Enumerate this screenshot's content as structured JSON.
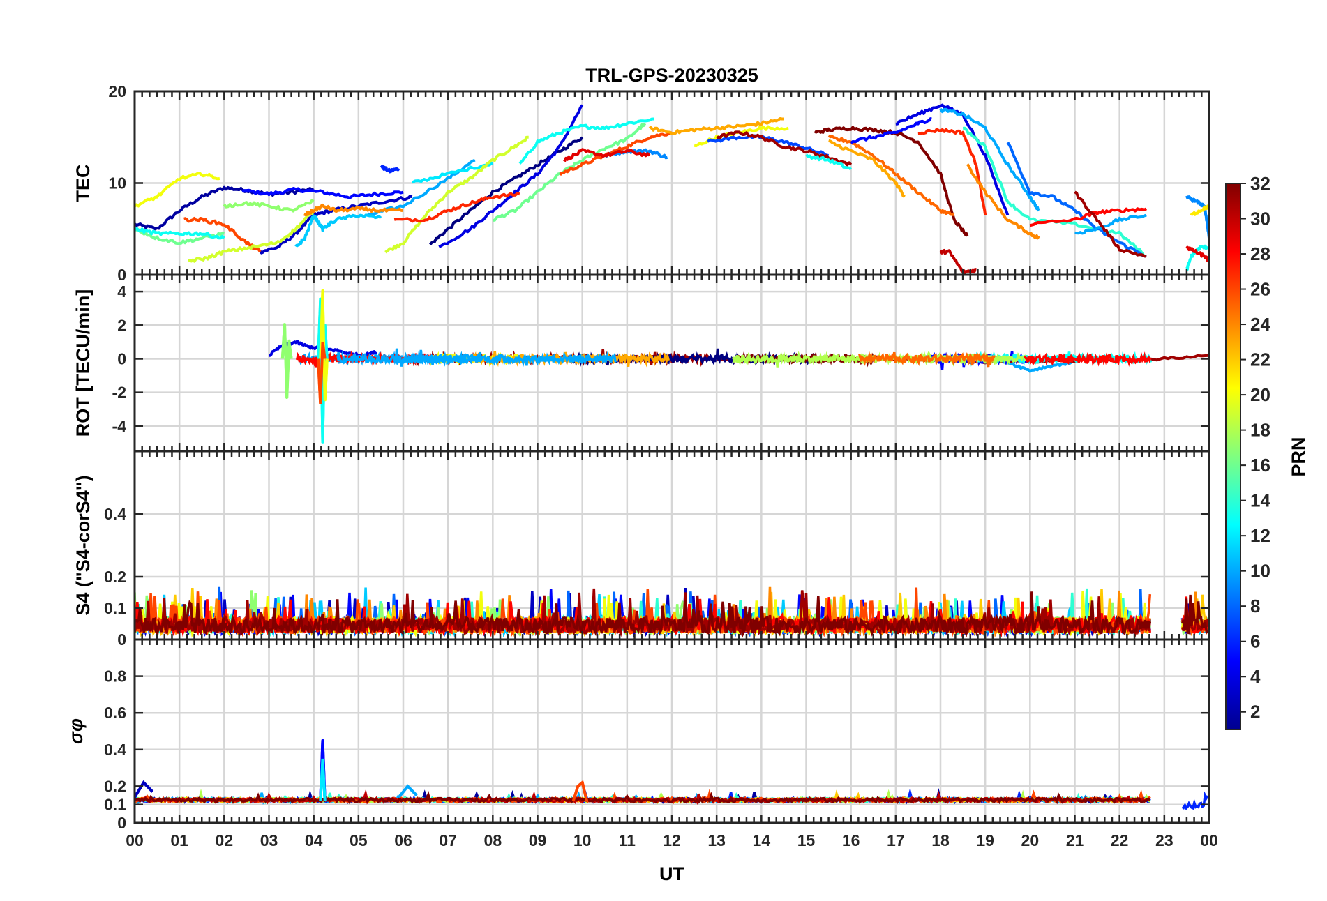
{
  "figure": {
    "title": "TRL-GPS-20230325",
    "xlabel": "UT",
    "x_ticks": [
      "00",
      "01",
      "02",
      "03",
      "04",
      "05",
      "06",
      "07",
      "08",
      "09",
      "10",
      "11",
      "12",
      "13",
      "14",
      "15",
      "16",
      "17",
      "18",
      "19",
      "20",
      "21",
      "22",
      "23",
      "00"
    ]
  },
  "colorbar": {
    "label": "PRN",
    "ticks": [
      "2",
      "4",
      "6",
      "8",
      "10",
      "12",
      "14",
      "16",
      "18",
      "20",
      "22",
      "24",
      "26",
      "28",
      "30",
      "32"
    ],
    "range": [
      1,
      32
    ],
    "colormap": "jet"
  },
  "chart_data": [
    {
      "type": "line",
      "panel": "TEC",
      "ylabel": "TEC",
      "xlim": [
        0,
        24
      ],
      "ylim": [
        0,
        20
      ],
      "y_ticks": [
        "0",
        "10",
        "20"
      ],
      "x_unit": "hours UT",
      "grid": true,
      "series": [
        {
          "prn": 2,
          "x": [
            0.0,
            0.5,
            1.0,
            1.5,
            2.0,
            2.5,
            3.0,
            3.5,
            4.0
          ],
          "y": [
            5.5,
            5.0,
            7.0,
            8.5,
            9.5,
            9.2,
            8.8,
            9.0,
            9.3
          ]
        },
        {
          "prn": 5,
          "x": [
            2.4,
            3.0,
            3.6,
            4.2,
            4.8,
            5.4,
            6.0
          ],
          "y": [
            9.2,
            8.8,
            9.3,
            9.0,
            8.5,
            8.8,
            9.0
          ]
        },
        {
          "prn": 6,
          "x": [
            5.5,
            5.7,
            5.9
          ],
          "y": [
            11.8,
            11.3,
            11.6
          ]
        },
        {
          "prn": 3,
          "x": [
            2.8,
            3.2,
            3.6,
            4.0,
            4.4,
            5.0,
            5.6,
            6.2
          ],
          "y": [
            2.5,
            3.0,
            4.5,
            6.5,
            7.0,
            7.5,
            8.0,
            8.5
          ]
        },
        {
          "prn": 1,
          "x": [
            6.6,
            7.0,
            7.5,
            8.0,
            8.5,
            9.0,
            9.5,
            10.0
          ],
          "y": [
            3.3,
            5.0,
            7.0,
            9.0,
            10.5,
            12.0,
            13.5,
            15.0
          ]
        },
        {
          "prn": 4,
          "x": [
            6.8,
            7.5,
            8.0,
            8.5,
            9.0,
            9.5,
            10.0
          ],
          "y": [
            3.0,
            5.0,
            7.0,
            9.0,
            11.0,
            14.0,
            18.5
          ]
        },
        {
          "prn": 10,
          "x": [
            5.2,
            6.0,
            7.0,
            7.6
          ],
          "y": [
            6.5,
            7.5,
            10.5,
            12.5
          ]
        },
        {
          "prn": 12,
          "x": [
            6.2,
            7.0,
            8.0
          ],
          "y": [
            10.0,
            11.0,
            12.2
          ]
        },
        {
          "prn": 19,
          "x": [
            5.6,
            6.0,
            6.5,
            7.0,
            7.5,
            8.0,
            8.5,
            8.8
          ],
          "y": [
            2.5,
            3.5,
            6.5,
            9.0,
            10.5,
            12.5,
            14.0,
            15.0
          ]
        },
        {
          "prn": 16,
          "x": [
            8.0,
            8.5,
            9.0,
            9.5,
            10.0,
            10.5,
            11.0,
            11.4
          ],
          "y": [
            6.0,
            7.0,
            9.0,
            11.0,
            12.5,
            13.8,
            14.8,
            16.5
          ]
        },
        {
          "prn": 13,
          "x": [
            8.6,
            9.0,
            9.5,
            10.0,
            10.5,
            11.0,
            11.6
          ],
          "y": [
            12.0,
            14.5,
            15.5,
            16.2,
            16.0,
            16.5,
            17.0
          ]
        },
        {
          "prn": 9,
          "x": [
            10.5,
            11.0,
            11.5,
            11.9
          ],
          "y": [
            13.0,
            13.5,
            13.5,
            12.8
          ]
        },
        {
          "prn": 27,
          "x": [
            5.8,
            6.5,
            7.0,
            7.5,
            8.0,
            8.6
          ],
          "y": [
            6.0,
            6.0,
            7.0,
            7.8,
            8.5,
            8.8
          ]
        },
        {
          "prn": 26,
          "x": [
            9.5,
            10.0,
            10.5,
            11.0,
            11.5,
            12.0
          ],
          "y": [
            11.0,
            12.0,
            13.0,
            14.0,
            15.0,
            15.5
          ]
        },
        {
          "prn": 29,
          "x": [
            9.6,
            10.0,
            10.5,
            11.0,
            11.5
          ],
          "y": [
            12.5,
            13.5,
            13.0,
            13.5,
            13.0
          ]
        },
        {
          "prn": 23,
          "x": [
            11.5,
            12.0,
            12.5,
            13.0,
            13.5,
            14.0,
            14.5
          ],
          "y": [
            16.0,
            15.5,
            15.8,
            16.0,
            16.2,
            16.5,
            17.0
          ]
        },
        {
          "prn": 20,
          "x": [
            12.5,
            13.0,
            13.5,
            14.0,
            14.6
          ],
          "y": [
            14.0,
            15.0,
            15.5,
            16.0,
            16.0
          ]
        },
        {
          "prn": 7,
          "x": [
            12.8,
            13.5,
            14.0,
            14.5,
            15.0,
            15.5
          ],
          "y": [
            14.5,
            15.0,
            15.0,
            14.5,
            13.8,
            13.0
          ]
        },
        {
          "prn": 31,
          "x": [
            13.0,
            13.5,
            14.0,
            14.5,
            15.0,
            15.5,
            16.0
          ],
          "y": [
            15.0,
            15.5,
            15.0,
            14.0,
            13.5,
            12.8,
            12.0
          ]
        },
        {
          "prn": 13,
          "x": [
            15.0,
            15.5,
            16.0
          ],
          "y": [
            13.0,
            12.5,
            11.5
          ]
        },
        {
          "prn": 32,
          "x": [
            15.2,
            15.5,
            16.0,
            16.5,
            17.0,
            17.5,
            18.0,
            18.3,
            18.6
          ],
          "y": [
            15.5,
            15.8,
            16.0,
            15.8,
            15.5,
            14.5,
            11.0,
            6.0,
            4.2
          ]
        },
        {
          "prn": 25,
          "x": [
            15.5,
            16.0,
            16.5,
            17.0,
            17.5,
            18.0,
            18.3
          ],
          "y": [
            15.0,
            14.5,
            13.0,
            11.0,
            9.0,
            7.0,
            6.5
          ]
        },
        {
          "prn": 23,
          "x": [
            15.5,
            16.0,
            16.5,
            17.0,
            17.2
          ],
          "y": [
            14.5,
            13.5,
            12.5,
            10.0,
            8.5
          ]
        },
        {
          "prn": 5,
          "x": [
            16.0,
            16.5,
            17.0,
            17.5,
            17.8
          ],
          "y": [
            14.5,
            15.0,
            15.5,
            16.5,
            17.0
          ]
        },
        {
          "prn": 4,
          "x": [
            17.0,
            17.5,
            18.0,
            18.5,
            19.0,
            19.5
          ],
          "y": [
            16.5,
            17.5,
            18.5,
            17.5,
            13.0,
            6.5
          ]
        },
        {
          "prn": 27,
          "x": [
            17.5,
            18.0,
            18.5,
            18.8,
            19.0
          ],
          "y": [
            15.5,
            15.8,
            15.5,
            12.0,
            6.5
          ]
        },
        {
          "prn": 10,
          "x": [
            18.0,
            18.5,
            19.0,
            19.5,
            20.0,
            20.2
          ],
          "y": [
            18.0,
            17.5,
            16.0,
            12.0,
            8.5,
            7.0
          ]
        },
        {
          "prn": 14,
          "x": [
            18.5,
            19.0,
            19.5,
            20.0,
            21.0,
            22.0,
            22.6
          ],
          "y": [
            16.0,
            14.0,
            8.0,
            6.0,
            5.5,
            4.5,
            2.0
          ]
        },
        {
          "prn": 24,
          "x": [
            18.6,
            19.0,
            19.5,
            20.0,
            20.2
          ],
          "y": [
            12.0,
            9.0,
            6.0,
            4.5,
            4.0
          ]
        },
        {
          "prn": 8,
          "x": [
            19.5,
            20.0,
            20.5,
            21.0,
            21.5,
            22.0,
            22.6
          ],
          "y": [
            14.5,
            9.0,
            8.5,
            7.0,
            5.0,
            3.5,
            2.0
          ]
        },
        {
          "prn": 28,
          "x": [
            20.0,
            21.0,
            21.5,
            22.0,
            22.6
          ],
          "y": [
            5.5,
            6.0,
            6.8,
            7.0,
            7.2
          ]
        },
        {
          "prn": 10,
          "x": [
            21.0,
            21.5,
            22.0,
            22.6
          ],
          "y": [
            4.5,
            5.0,
            6.0,
            6.5
          ]
        },
        {
          "prn": 31,
          "x": [
            21.0,
            21.5,
            22.0,
            22.6
          ],
          "y": [
            9.0,
            6.0,
            2.8,
            2.0
          ]
        },
        {
          "prn": 30,
          "x": [
            18.0,
            18.2,
            18.5,
            18.8
          ],
          "y": [
            2.5,
            2.5,
            0.3,
            0.5
          ]
        },
        {
          "prn": 16,
          "x": [
            0.0,
            0.5,
            1.0,
            1.5,
            2.0
          ],
          "y": [
            5.0,
            4.0,
            3.5,
            4.0,
            4.5
          ]
        },
        {
          "prn": 13,
          "x": [
            0.0,
            0.5,
            1.0,
            1.5,
            2.0
          ],
          "y": [
            5.0,
            4.5,
            4.5,
            4.5,
            4.0
          ]
        },
        {
          "prn": 20,
          "x": [
            0.0,
            0.5,
            1.0,
            1.5,
            1.9
          ],
          "y": [
            7.5,
            8.5,
            10.5,
            11.0,
            10.5
          ]
        },
        {
          "prn": 26,
          "x": [
            1.1,
            1.5,
            2.0,
            2.5,
            2.8
          ],
          "y": [
            6.0,
            6.0,
            5.5,
            3.5,
            2.5
          ]
        },
        {
          "prn": 19,
          "x": [
            1.2,
            1.6,
            2.0,
            2.6,
            3.2,
            3.6,
            4.0
          ],
          "y": [
            1.5,
            1.8,
            2.5,
            3.0,
            3.5,
            5.0,
            7.0
          ]
        },
        {
          "prn": 17,
          "x": [
            2.0,
            2.5,
            3.0,
            3.5,
            4.0
          ],
          "y": [
            7.5,
            7.8,
            7.5,
            7.0,
            8.0
          ]
        },
        {
          "prn": 11,
          "x": [
            3.6,
            3.8,
            4.0,
            4.2,
            4.5,
            5.0,
            5.5
          ],
          "y": [
            3.0,
            4.0,
            6.5,
            5.0,
            6.0,
            6.5,
            6.2
          ]
        },
        {
          "prn": 24,
          "x": [
            3.8,
            4.0,
            4.2,
            4.5,
            5.0,
            5.5,
            6.0
          ],
          "y": [
            6.5,
            7.0,
            7.5,
            7.0,
            7.2,
            7.0,
            7.0
          ]
        },
        {
          "prn": 9,
          "x": [
            23.5,
            23.7,
            23.9,
            24.0
          ],
          "y": [
            8.5,
            8.0,
            7.5,
            4.0
          ]
        },
        {
          "prn": 21,
          "x": [
            23.6,
            23.8,
            24.0
          ],
          "y": [
            6.5,
            7.0,
            7.5
          ]
        },
        {
          "prn": 13,
          "x": [
            23.5,
            23.6,
            23.8,
            24.0
          ],
          "y": [
            0.5,
            2.0,
            3.0,
            3.0
          ]
        },
        {
          "prn": 29,
          "x": [
            23.5,
            23.7,
            23.9,
            24.0
          ],
          "y": [
            3.0,
            2.5,
            2.0,
            1.5
          ]
        }
      ]
    },
    {
      "type": "line",
      "panel": "ROT",
      "ylabel": "ROT [TECU/min]",
      "xlim": [
        0,
        24
      ],
      "ylim": [
        -5.5,
        5
      ],
      "y_ticks": [
        "-4",
        "-2",
        "0",
        "2",
        "4"
      ],
      "grid": true,
      "series": [
        {
          "prn": 17,
          "x": [
            3.3,
            3.35,
            3.4,
            3.45,
            3.5
          ],
          "y": [
            0.0,
            2.1,
            -2.3,
            1.0,
            0.0
          ]
        },
        {
          "prn": 13,
          "x": [
            4.1,
            4.15,
            4.2,
            4.25,
            4.3
          ],
          "y": [
            0.0,
            3.5,
            -5.0,
            2.0,
            0.0
          ]
        },
        {
          "prn": 20,
          "x": [
            4.15,
            4.2,
            4.25,
            4.3
          ],
          "y": [
            0.0,
            4.0,
            -2.5,
            0.0
          ]
        },
        {
          "prn": 26,
          "x": [
            4.1,
            4.15,
            4.2,
            4.25
          ],
          "y": [
            0.0,
            -2.7,
            1.0,
            0.0
          ]
        },
        {
          "prn": 4,
          "x": [
            3.0,
            3.3,
            3.6,
            3.9,
            4.2,
            4.5,
            4.8,
            5.1,
            5.4
          ],
          "y": [
            0.2,
            0.8,
            1.0,
            0.7,
            0.6,
            0.5,
            0.3,
            0.2,
            0.4
          ]
        },
        {
          "prn": 10,
          "x": [
            19.5,
            20.0,
            20.5,
            21.0
          ],
          "y": [
            -0.2,
            -0.7,
            -0.4,
            -0.2
          ]
        },
        {
          "prn": 31,
          "x": [
            13.0,
            15.0,
            17.0,
            19.0,
            21.0,
            23.0,
            24.0
          ],
          "y": [
            0.0,
            -0.1,
            0.0,
            -0.2,
            -0.1,
            0.0,
            0.2
          ]
        }
      ]
    },
    {
      "type": "line",
      "panel": "S4",
      "ylabel": "S4 (\"S4-corS4\")",
      "xlim": [
        0,
        24
      ],
      "ylim": [
        0,
        0.6
      ],
      "y_ticks": [
        "0",
        "0.1",
        "0.2",
        "0.4"
      ],
      "grid": true,
      "typical_range": [
        0.0,
        0.18
      ]
    },
    {
      "type": "line",
      "panel": "sigma_phi",
      "ylabel": "σφ",
      "xlim": [
        0,
        24
      ],
      "ylim": [
        0,
        1
      ],
      "y_ticks": [
        "0",
        "0.1",
        "0.2",
        "0.4",
        "0.6",
        "0.8"
      ],
      "grid": true,
      "series": [
        {
          "prn": 5,
          "x": [
            4.15,
            4.2,
            4.25
          ],
          "y": [
            0.12,
            0.45,
            0.12
          ]
        },
        {
          "prn": 12,
          "x": [
            4.15,
            4.2,
            4.25
          ],
          "y": [
            0.12,
            0.35,
            0.12
          ]
        },
        {
          "prn": 26,
          "x": [
            9.8,
            9.9,
            10.0,
            10.1
          ],
          "y": [
            0.12,
            0.2,
            0.22,
            0.12
          ]
        },
        {
          "prn": 10,
          "x": [
            5.9,
            6.1,
            6.3
          ],
          "y": [
            0.14,
            0.2,
            0.15
          ]
        },
        {
          "prn": 3,
          "x": [
            0.0,
            0.2,
            0.4
          ],
          "y": [
            0.14,
            0.22,
            0.17
          ]
        }
      ]
    }
  ]
}
